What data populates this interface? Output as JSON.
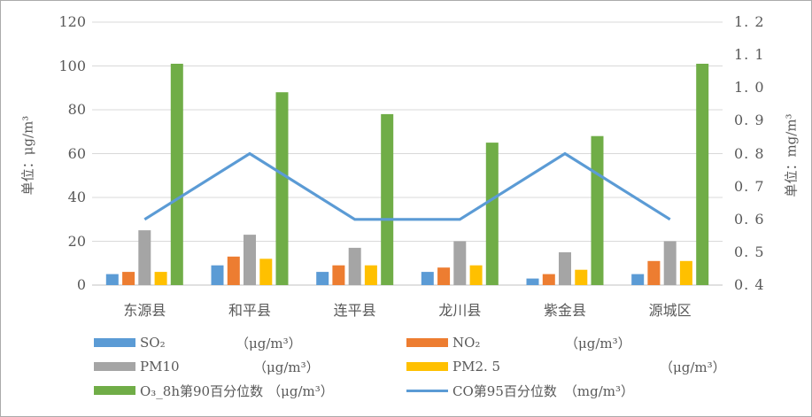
{
  "chart_data": {
    "type": "bar+line combo (dual axis)",
    "categories": [
      "东源县",
      "和平县",
      "连平县",
      "龙川县",
      "紫金县",
      "源城区"
    ],
    "series": [
      {
        "name": "SO₂",
        "unit": "（μg/m³）",
        "type": "bar",
        "axis": "left",
        "color": "#5B9BD5",
        "values": [
          5,
          9,
          6,
          6,
          3,
          5
        ]
      },
      {
        "name": "NO₂",
        "unit": "（μg/m³）",
        "type": "bar",
        "axis": "left",
        "color": "#ED7D31",
        "values": [
          6,
          13,
          9,
          8,
          5,
          11
        ]
      },
      {
        "name": "PM10",
        "unit": "（μg/m³）",
        "type": "bar",
        "axis": "left",
        "color": "#A5A5A5",
        "values": [
          25,
          23,
          17,
          20,
          15,
          20
        ]
      },
      {
        "name": "PM2. 5",
        "unit": "（μg/m³）",
        "type": "bar",
        "axis": "left",
        "color": "#FFC000",
        "values": [
          6,
          12,
          9,
          9,
          7,
          11
        ]
      },
      {
        "name": "O₃_8h第90百分位数",
        "unit": "（μg/m³）",
        "type": "bar",
        "axis": "left",
        "color": "#70AD47",
        "values": [
          101,
          88,
          78,
          65,
          68,
          101
        ]
      },
      {
        "name": "CO第95百分位数",
        "unit": "（mg/m³）",
        "type": "line",
        "axis": "right",
        "color": "#5B9BD5",
        "values": [
          0.6,
          0.8,
          0.6,
          0.6,
          0.8,
          0.6
        ]
      }
    ],
    "left_axis": {
      "title": "单位：μg/m³",
      "min": 0,
      "max": 120,
      "ticks": [
        "0",
        "20",
        "40",
        "60",
        "80",
        "100",
        "120"
      ]
    },
    "right_axis": {
      "title": "单位：mg/m³",
      "min": 0.4,
      "max": 1.2,
      "ticks": [
        "0. 4",
        "0. 5",
        "0. 6",
        "0. 7",
        "0. 8",
        "0. 9",
        "1. 0",
        "1. 1",
        "1. 2"
      ]
    },
    "grid": true,
    "legend_position": "bottom, two columns",
    "legend_order": [
      0,
      2,
      4,
      1,
      3,
      5
    ],
    "colors": {
      "gridline": "#D9D9D9",
      "baseline": "#C0C0C0",
      "axis_text": "#595959"
    }
  }
}
